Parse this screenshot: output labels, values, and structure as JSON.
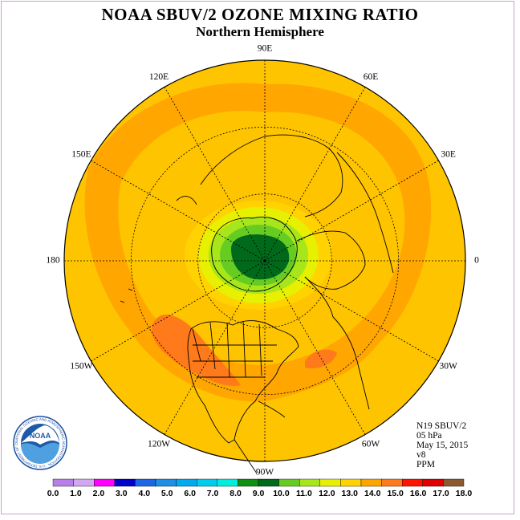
{
  "title": "NOAA SBUV/2 OZONE MIXING RATIO",
  "subtitle": "Northern Hemisphere",
  "info": {
    "satellite": "N19 SBUV/2",
    "level": "05 hPa",
    "date": "May 15, 2015",
    "version": "v8",
    "units": "PPM"
  },
  "logo": {
    "text": "NOAA",
    "ring_text": "NATIONAL OCEANIC AND ATMOSPHERIC ADMINISTRATION · U.S. DEPARTMENT OF COMMERCE"
  },
  "longitude_labels": [
    {
      "text": "90E",
      "angle": 0
    },
    {
      "text": "60E",
      "angle": 30
    },
    {
      "text": "30E",
      "angle": 60
    },
    {
      "text": "0",
      "angle": 90
    },
    {
      "text": "30W",
      "angle": 120
    },
    {
      "text": "60W",
      "angle": 150
    },
    {
      "text": "90W",
      "angle": 180
    },
    {
      "text": "120W",
      "angle": 210
    },
    {
      "text": "150W",
      "angle": 240
    },
    {
      "text": "180",
      "angle": 270
    },
    {
      "text": "150E",
      "angle": 300
    },
    {
      "text": "120E",
      "angle": 330
    }
  ],
  "colorbar": {
    "ticks": [
      "0.0",
      "1.0",
      "2.0",
      "3.0",
      "4.0",
      "5.0",
      "6.0",
      "7.0",
      "8.0",
      "9.0",
      "10.0",
      "11.0",
      "12.0",
      "13.0",
      "14.0",
      "15.0",
      "16.0",
      "17.0",
      "18.0"
    ],
    "colors": [
      "#b87fe8",
      "#d2a7f2",
      "#ff00ff",
      "#0000cc",
      "#1a66e6",
      "#1f8fe6",
      "#00aaee",
      "#00ccee",
      "#00eedd",
      "#109010",
      "#006a1a",
      "#66cc22",
      "#a6e61a",
      "#e6f000",
      "#ffd200",
      "#ffa500",
      "#ff7a1a",
      "#ff1400",
      "#e00000",
      "#8b5a32"
    ]
  }
}
